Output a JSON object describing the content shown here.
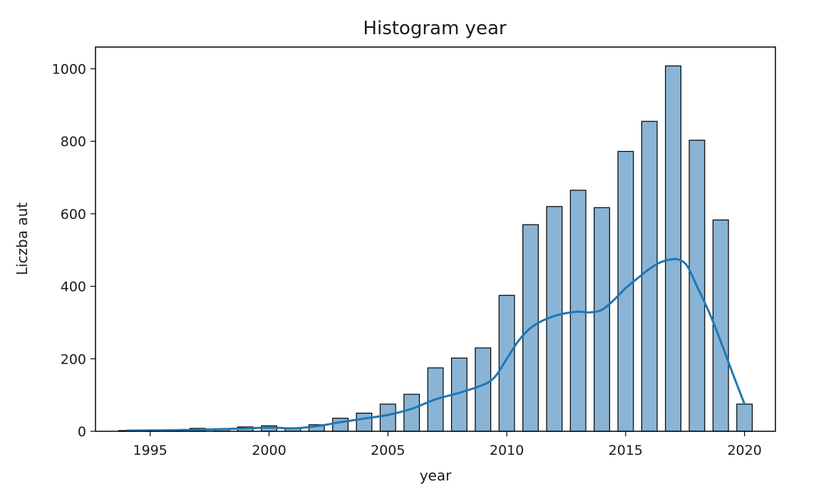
{
  "chart_data": {
    "type": "bar",
    "title": "Histogram year",
    "xlabel": "year",
    "ylabel": "Liczba aut",
    "xlim": [
      1992.7,
      2021.3
    ],
    "ylim": [
      0,
      1060
    ],
    "xticks": [
      1995,
      2000,
      2005,
      2010,
      2015,
      2020
    ],
    "yticks": [
      0,
      200,
      400,
      600,
      800,
      1000
    ],
    "bin_width": 0.65,
    "bar_color": "#89b4d5",
    "bar_edge_color": "#000000",
    "kde_color": "#1f77b4",
    "grid": false,
    "bars": [
      {
        "x": 1994,
        "value": 2
      },
      {
        "x": 1995,
        "value": 1
      },
      {
        "x": 1996,
        "value": 2
      },
      {
        "x": 1997,
        "value": 8
      },
      {
        "x": 1998,
        "value": 7
      },
      {
        "x": 1999,
        "value": 12
      },
      {
        "x": 2000,
        "value": 15
      },
      {
        "x": 2001,
        "value": 9
      },
      {
        "x": 2002,
        "value": 18
      },
      {
        "x": 2003,
        "value": 36
      },
      {
        "x": 2004,
        "value": 50
      },
      {
        "x": 2005,
        "value": 75
      },
      {
        "x": 2006,
        "value": 102
      },
      {
        "x": 2007,
        "value": 175
      },
      {
        "x": 2008,
        "value": 202
      },
      {
        "x": 2009,
        "value": 230
      },
      {
        "x": 2010,
        "value": 375
      },
      {
        "x": 2011,
        "value": 570
      },
      {
        "x": 2012,
        "value": 620
      },
      {
        "x": 2013,
        "value": 665
      },
      {
        "x": 2014,
        "value": 617
      },
      {
        "x": 2015,
        "value": 772
      },
      {
        "x": 2016,
        "value": 855
      },
      {
        "x": 2017,
        "value": 1008
      },
      {
        "x": 2018,
        "value": 803
      },
      {
        "x": 2019,
        "value": 583
      },
      {
        "x": 2020,
        "value": 75
      }
    ],
    "kde": {
      "x": [
        1994,
        1996,
        1998,
        2000,
        2001,
        2002,
        2003,
        2004,
        2005,
        2006,
        2007,
        2008,
        2009,
        2009.5,
        2010,
        2010.5,
        2011,
        2011.5,
        2012,
        2012.5,
        2013,
        2013.5,
        2014,
        2014.5,
        2015,
        2015.5,
        2016,
        2016.5,
        2017,
        2017.3,
        2017.6,
        2018,
        2018.5,
        2019,
        2019.5,
        2020
      ],
      "y": [
        2,
        3,
        6,
        10,
        8,
        14,
        25,
        35,
        45,
        62,
        88,
        106,
        128,
        150,
        200,
        250,
        285,
        305,
        318,
        326,
        330,
        328,
        335,
        362,
        395,
        422,
        448,
        467,
        475,
        472,
        455,
        400,
        330,
        248,
        160,
        75
      ]
    }
  }
}
